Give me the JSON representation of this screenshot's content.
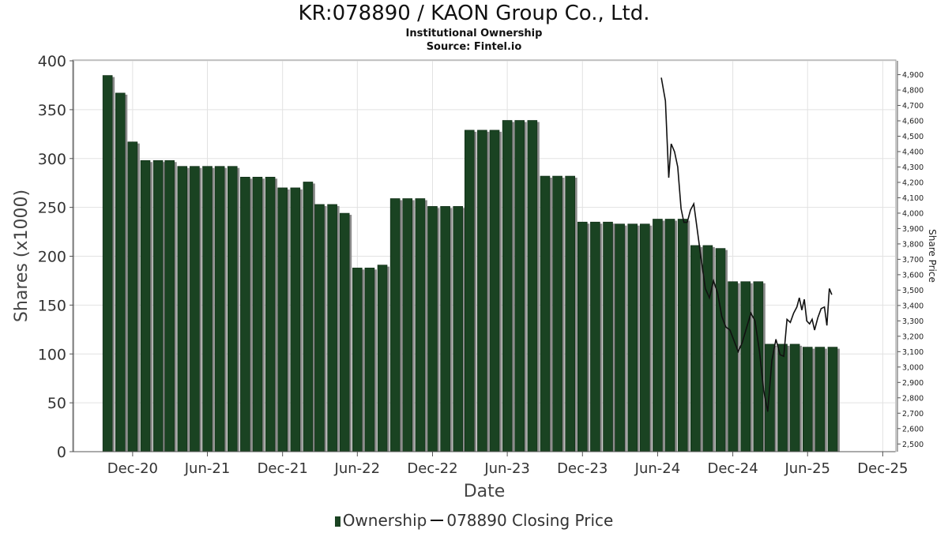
{
  "chart_data": {
    "type": "bar",
    "title": "KR:078890 / KAON Group Co., Ltd.",
    "subtitle": "Institutional Ownership",
    "source": "Source: Fintel.io",
    "xlabel": "Date",
    "ylabel": "Shares (x1000)",
    "y2label": "Share Price",
    "ylim": [
      0,
      400
    ],
    "yticks": [
      0,
      50,
      100,
      150,
      200,
      250,
      300,
      350,
      400
    ],
    "y2lim": [
      2450,
      4990
    ],
    "y2ticks": [
      "2,500",
      "2,600",
      "2,700",
      "2,800",
      "2,900",
      "3,000",
      "3,100",
      "3,200",
      "3,300",
      "3,400",
      "3,500",
      "3,600",
      "3,700",
      "3,800",
      "3,900",
      "4,000",
      "4,100",
      "4,200",
      "4,300",
      "4,400",
      "4,500",
      "4,600",
      "4,700",
      "4,800",
      "4,900"
    ],
    "xlim": [
      "2020-07-10",
      "2025-12-31"
    ],
    "xticks": [
      {
        "label": "Dec-20",
        "date": "2020-12-01"
      },
      {
        "label": "Jun-21",
        "date": "2021-06-01"
      },
      {
        "label": "Dec-21",
        "date": "2021-12-01"
      },
      {
        "label": "Jun-22",
        "date": "2022-06-01"
      },
      {
        "label": "Dec-22",
        "date": "2022-12-01"
      },
      {
        "label": "Jun-23",
        "date": "2023-06-01"
      },
      {
        "label": "Dec-23",
        "date": "2023-12-01"
      },
      {
        "label": "Jun-24",
        "date": "2024-06-01"
      },
      {
        "label": "Dec-24",
        "date": "2024-12-01"
      },
      {
        "label": "Jun-25",
        "date": "2025-06-01"
      },
      {
        "label": "Dec-25",
        "date": "2025-12-01"
      }
    ],
    "grid": true,
    "legend_position": "bottom",
    "series": [
      {
        "name": "Ownership",
        "type": "bar",
        "color": "#1a4322",
        "points": [
          [
            "2020-10-01",
            385
          ],
          [
            "2020-11-01",
            367
          ],
          [
            "2020-12-01",
            317
          ],
          [
            "2021-01-01",
            298
          ],
          [
            "2021-02-01",
            298
          ],
          [
            "2021-03-01",
            298
          ],
          [
            "2021-04-01",
            292
          ],
          [
            "2021-05-01",
            292
          ],
          [
            "2021-06-01",
            292
          ],
          [
            "2021-07-01",
            292
          ],
          [
            "2021-08-01",
            292
          ],
          [
            "2021-09-01",
            281
          ],
          [
            "2021-10-01",
            281
          ],
          [
            "2021-11-01",
            281
          ],
          [
            "2021-12-01",
            270
          ],
          [
            "2022-01-01",
            270
          ],
          [
            "2022-02-01",
            276
          ],
          [
            "2022-03-01",
            253
          ],
          [
            "2022-04-01",
            253
          ],
          [
            "2022-05-01",
            244
          ],
          [
            "2022-06-01",
            188
          ],
          [
            "2022-07-01",
            188
          ],
          [
            "2022-08-01",
            191
          ],
          [
            "2022-09-01",
            259
          ],
          [
            "2022-10-01",
            259
          ],
          [
            "2022-11-01",
            259
          ],
          [
            "2022-12-01",
            251
          ],
          [
            "2023-01-01",
            251
          ],
          [
            "2023-02-01",
            251
          ],
          [
            "2023-03-01",
            329
          ],
          [
            "2023-04-01",
            329
          ],
          [
            "2023-05-01",
            329
          ],
          [
            "2023-06-01",
            339
          ],
          [
            "2023-07-01",
            339
          ],
          [
            "2023-08-01",
            339
          ],
          [
            "2023-09-01",
            282
          ],
          [
            "2023-10-01",
            282
          ],
          [
            "2023-11-01",
            282
          ],
          [
            "2023-12-01",
            235
          ],
          [
            "2024-01-01",
            235
          ],
          [
            "2024-02-01",
            235
          ],
          [
            "2024-03-01",
            233
          ],
          [
            "2024-04-01",
            233
          ],
          [
            "2024-05-01",
            233
          ],
          [
            "2024-06-01",
            238
          ],
          [
            "2024-07-01",
            238
          ],
          [
            "2024-08-01",
            238
          ],
          [
            "2024-09-01",
            211
          ],
          [
            "2024-10-01",
            211
          ],
          [
            "2024-11-01",
            208
          ],
          [
            "2024-12-01",
            174
          ],
          [
            "2025-01-01",
            174
          ],
          [
            "2025-02-01",
            174
          ],
          [
            "2025-03-01",
            110
          ],
          [
            "2025-04-01",
            110
          ],
          [
            "2025-05-01",
            110
          ],
          [
            "2025-06-01",
            107
          ],
          [
            "2025-07-01",
            107
          ],
          [
            "2025-08-01",
            107
          ]
        ]
      },
      {
        "name": "078890 Closing Price",
        "type": "line",
        "axis": "right",
        "color": "#111111",
        "points": [
          [
            "2024-06-10",
            4880
          ],
          [
            "2024-06-20",
            4730
          ],
          [
            "2024-06-28",
            4230
          ],
          [
            "2024-07-04",
            4450
          ],
          [
            "2024-07-12",
            4400
          ],
          [
            "2024-07-20",
            4300
          ],
          [
            "2024-07-28",
            4030
          ],
          [
            "2024-08-04",
            3940
          ],
          [
            "2024-08-12",
            3940
          ],
          [
            "2024-08-20",
            4020
          ],
          [
            "2024-08-28",
            4060
          ],
          [
            "2024-09-05",
            3900
          ],
          [
            "2024-09-15",
            3700
          ],
          [
            "2024-09-25",
            3510
          ],
          [
            "2024-10-05",
            3450
          ],
          [
            "2024-10-15",
            3560
          ],
          [
            "2024-10-25",
            3480
          ],
          [
            "2024-11-04",
            3330
          ],
          [
            "2024-11-14",
            3260
          ],
          [
            "2024-11-24",
            3240
          ],
          [
            "2024-12-04",
            3170
          ],
          [
            "2024-12-14",
            3100
          ],
          [
            "2024-12-24",
            3160
          ],
          [
            "2025-01-04",
            3260
          ],
          [
            "2025-01-14",
            3350
          ],
          [
            "2025-01-24",
            3300
          ],
          [
            "2025-02-04",
            3100
          ],
          [
            "2025-02-14",
            2850
          ],
          [
            "2025-02-24",
            2710
          ],
          [
            "2025-03-06",
            3040
          ],
          [
            "2025-03-16",
            3180
          ],
          [
            "2025-03-26",
            3080
          ],
          [
            "2025-04-04",
            3070
          ],
          [
            "2025-04-12",
            3310
          ],
          [
            "2025-04-20",
            3290
          ],
          [
            "2025-04-28",
            3350
          ],
          [
            "2025-05-06",
            3390
          ],
          [
            "2025-05-12",
            3450
          ],
          [
            "2025-05-18",
            3370
          ],
          [
            "2025-05-24",
            3440
          ],
          [
            "2025-05-30",
            3300
          ],
          [
            "2025-06-06",
            3280
          ],
          [
            "2025-06-12",
            3310
          ],
          [
            "2025-06-18",
            3240
          ],
          [
            "2025-06-26",
            3320
          ],
          [
            "2025-07-04",
            3380
          ],
          [
            "2025-07-12",
            3390
          ],
          [
            "2025-07-18",
            3270
          ],
          [
            "2025-07-24",
            3510
          ],
          [
            "2025-07-30",
            3470
          ]
        ]
      }
    ]
  }
}
